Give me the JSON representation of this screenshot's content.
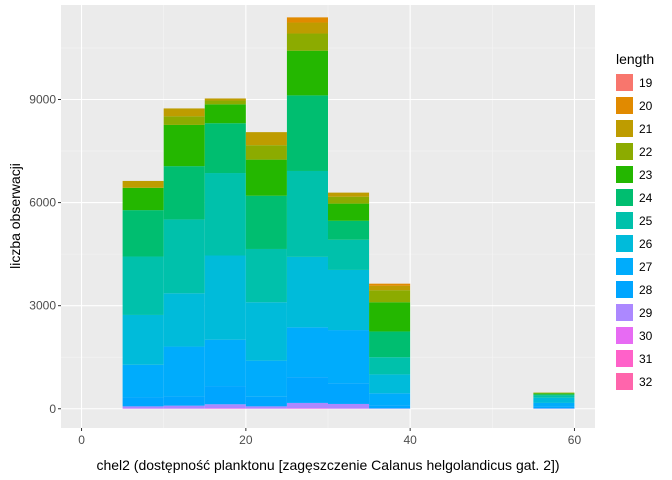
{
  "chart_data": {
    "type": "bar",
    "subtype": "stacked-histogram",
    "xlabel": "chel2 (dostępność planktonu [zagęszczenie Calanus helgolandicus gat. 2])",
    "ylabel": "liczba obserwacji",
    "xlim": [
      -2.5,
      62.5
    ],
    "ylim": [
      -560,
      11750
    ],
    "x_ticks": [
      0,
      20,
      40,
      60
    ],
    "y_ticks": [
      0,
      3000,
      6000,
      9000
    ],
    "x_tick_labels": [
      "0",
      "20",
      "40",
      "60"
    ],
    "y_tick_labels": [
      "0",
      "3000",
      "6000",
      "9000"
    ],
    "grid": true,
    "legend": {
      "title": "length",
      "position": "right"
    },
    "bin_width": 5,
    "bins": [
      {
        "x0": 5,
        "x1": 10
      },
      {
        "x0": 10,
        "x1": 15
      },
      {
        "x0": 15,
        "x1": 20
      },
      {
        "x0": 20,
        "x1": 25
      },
      {
        "x0": 25,
        "x1": 30
      },
      {
        "x0": 30,
        "x1": 35
      },
      {
        "x0": 35,
        "x1": 40
      },
      {
        "x0": 55,
        "x1": 60
      }
    ],
    "series": [
      {
        "name": "19",
        "color": "#F8766D",
        "values": [
          0,
          0,
          0,
          0,
          0,
          0,
          0,
          0
        ]
      },
      {
        "name": "20",
        "color": "#E18A00",
        "values": [
          0,
          0,
          0,
          0,
          150,
          0,
          60,
          0
        ]
      },
      {
        "name": "21",
        "color": "#BE9C00",
        "values": [
          200,
          230,
          60,
          380,
          320,
          120,
          130,
          0
        ]
      },
      {
        "name": "22",
        "color": "#8CAB00",
        "values": [
          0,
          250,
          110,
          420,
          500,
          200,
          350,
          20
        ]
      },
      {
        "name": "23",
        "color": "#24B700",
        "values": [
          650,
          1200,
          550,
          1050,
          1300,
          500,
          850,
          30
        ]
      },
      {
        "name": "24",
        "color": "#00BE70",
        "values": [
          1350,
          1550,
          1450,
          1550,
          2200,
          550,
          750,
          30
        ]
      },
      {
        "name": "25",
        "color": "#00C1AB",
        "values": [
          1700,
          2150,
          2400,
          1550,
          2500,
          880,
          500,
          70
        ]
      },
      {
        "name": "26",
        "color": "#00BBDA",
        "values": [
          1450,
          1550,
          2450,
          1700,
          2050,
          1750,
          550,
          150
        ]
      },
      {
        "name": "27",
        "color": "#00ACFC",
        "values": [
          950,
          1450,
          1350,
          1050,
          1450,
          1550,
          350,
          100
        ]
      },
      {
        "name": "28",
        "color": "#00A5FF",
        "values": [
          260,
          270,
          530,
          280,
          750,
          600,
          90,
          60
        ]
      },
      {
        "name": "29",
        "color": "#AC88FF",
        "values": [
          60,
          80,
          110,
          60,
          150,
          130,
          10,
          10
        ]
      },
      {
        "name": "30",
        "color": "#E76BF3",
        "values": [
          10,
          10,
          20,
          10,
          20,
          10,
          0,
          0
        ]
      },
      {
        "name": "31",
        "color": "#FF61C9",
        "values": [
          0,
          0,
          0,
          0,
          0,
          0,
          0,
          0
        ]
      },
      {
        "name": "32",
        "color": "#FF65AC",
        "values": [
          0,
          0,
          0,
          0,
          0,
          0,
          0,
          0
        ]
      }
    ]
  }
}
